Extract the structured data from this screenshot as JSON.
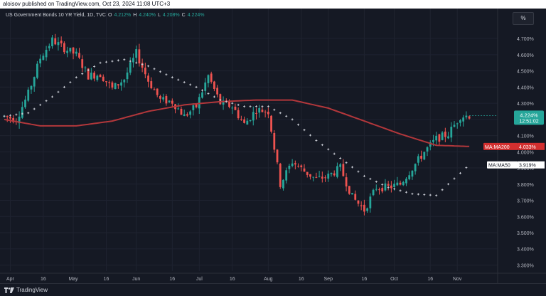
{
  "header": {
    "published": "aloisov published on TradingView.com, Oct 23, 2024 11:08 UTC+3"
  },
  "legend": {
    "symbol": "US Government Bonds 10 YR Yield, 1D, TVC",
    "o_label": "O",
    "o_value": "4.212%",
    "h_label": "H",
    "h_value": "4.240%",
    "l_label": "L",
    "l_value": "4.208%",
    "c_label": "C",
    "c_value": "4.224%"
  },
  "unit_label": "%",
  "footer": {
    "brand": "TradingView"
  },
  "colors": {
    "up": "#26a69a",
    "down": "#ef5350",
    "ma200": "#b2373b",
    "ma50": "#d1d4dc",
    "grid": "#1f2330"
  },
  "chart_data": {
    "type": "candlestick",
    "y_axis": {
      "min": 3.28,
      "max": 4.78,
      "ticks": [
        "4.700%",
        "4.600%",
        "4.500%",
        "4.400%",
        "4.300%",
        "4.200%",
        "4.100%",
        "4.000%",
        "3.900%",
        "3.800%",
        "3.700%",
        "3.600%",
        "3.500%",
        "3.400%",
        "3.300%"
      ],
      "tick_values": [
        4.7,
        4.6,
        4.5,
        4.4,
        4.3,
        4.2,
        4.1,
        4.0,
        3.9,
        3.8,
        3.7,
        3.6,
        3.5,
        3.4,
        3.3
      ]
    },
    "x_axis": {
      "labels": [
        "Apr",
        "16",
        "May",
        "16",
        "Jun",
        "16",
        "Jul",
        "16",
        "Aug",
        "16",
        "Sep",
        "16",
        "Oct",
        "16",
        "Nov"
      ],
      "label_bar_index": [
        2,
        13,
        23,
        34,
        44,
        56,
        65,
        76,
        88,
        99,
        108,
        120,
        130,
        142,
        151
      ]
    },
    "bar_count": 156,
    "ohlc_waypoints": [
      [
        0,
        4.22
      ],
      [
        4,
        4.2
      ],
      [
        8,
        4.36
      ],
      [
        12,
        4.58
      ],
      [
        16,
        4.69
      ],
      [
        20,
        4.64
      ],
      [
        24,
        4.6
      ],
      [
        28,
        4.47
      ],
      [
        32,
        4.48
      ],
      [
        36,
        4.39
      ],
      [
        40,
        4.45
      ],
      [
        44,
        4.61
      ],
      [
        48,
        4.44
      ],
      [
        52,
        4.32
      ],
      [
        56,
        4.31
      ],
      [
        60,
        4.22
      ],
      [
        64,
        4.28
      ],
      [
        68,
        4.47
      ],
      [
        72,
        4.3
      ],
      [
        76,
        4.28
      ],
      [
        80,
        4.17
      ],
      [
        84,
        4.26
      ],
      [
        88,
        4.25
      ],
      [
        92,
        3.8
      ],
      [
        96,
        3.94
      ],
      [
        100,
        3.88
      ],
      [
        104,
        3.83
      ],
      [
        108,
        3.85
      ],
      [
        112,
        3.9
      ],
      [
        116,
        3.72
      ],
      [
        120,
        3.64
      ],
      [
        124,
        3.78
      ],
      [
        128,
        3.78
      ],
      [
        132,
        3.8
      ],
      [
        136,
        3.9
      ],
      [
        140,
        4.0
      ],
      [
        144,
        4.08
      ],
      [
        148,
        4.11
      ],
      [
        152,
        4.22
      ],
      [
        155,
        4.224
      ]
    ],
    "series": [
      {
        "name": "MA:MA200",
        "last_value": "4.033%",
        "waypoints": [
          [
            0,
            4.2
          ],
          [
            12,
            4.16
          ],
          [
            24,
            4.16
          ],
          [
            36,
            4.19
          ],
          [
            48,
            4.25
          ],
          [
            60,
            4.29
          ],
          [
            72,
            4.31
          ],
          [
            84,
            4.32
          ],
          [
            96,
            4.32
          ],
          [
            108,
            4.27
          ],
          [
            120,
            4.19
          ],
          [
            132,
            4.11
          ],
          [
            144,
            4.04
          ],
          [
            155,
            4.033
          ]
        ]
      },
      {
        "name": "MA:MA50",
        "last_value": "3.919%",
        "waypoints": [
          [
            0,
            4.22
          ],
          [
            8,
            4.24
          ],
          [
            16,
            4.34
          ],
          [
            24,
            4.46
          ],
          [
            32,
            4.55
          ],
          [
            40,
            4.57
          ],
          [
            48,
            4.53
          ],
          [
            56,
            4.46
          ],
          [
            64,
            4.4
          ],
          [
            72,
            4.32
          ],
          [
            80,
            4.28
          ],
          [
            88,
            4.28
          ],
          [
            96,
            4.2
          ],
          [
            104,
            4.07
          ],
          [
            112,
            3.96
          ],
          [
            120,
            3.85
          ],
          [
            128,
            3.78
          ],
          [
            136,
            3.74
          ],
          [
            144,
            3.73
          ],
          [
            148,
            3.8
          ],
          [
            155,
            3.919
          ]
        ]
      }
    ],
    "last_price": {
      "value": "4.224%",
      "countdown": "12:51:02"
    }
  }
}
